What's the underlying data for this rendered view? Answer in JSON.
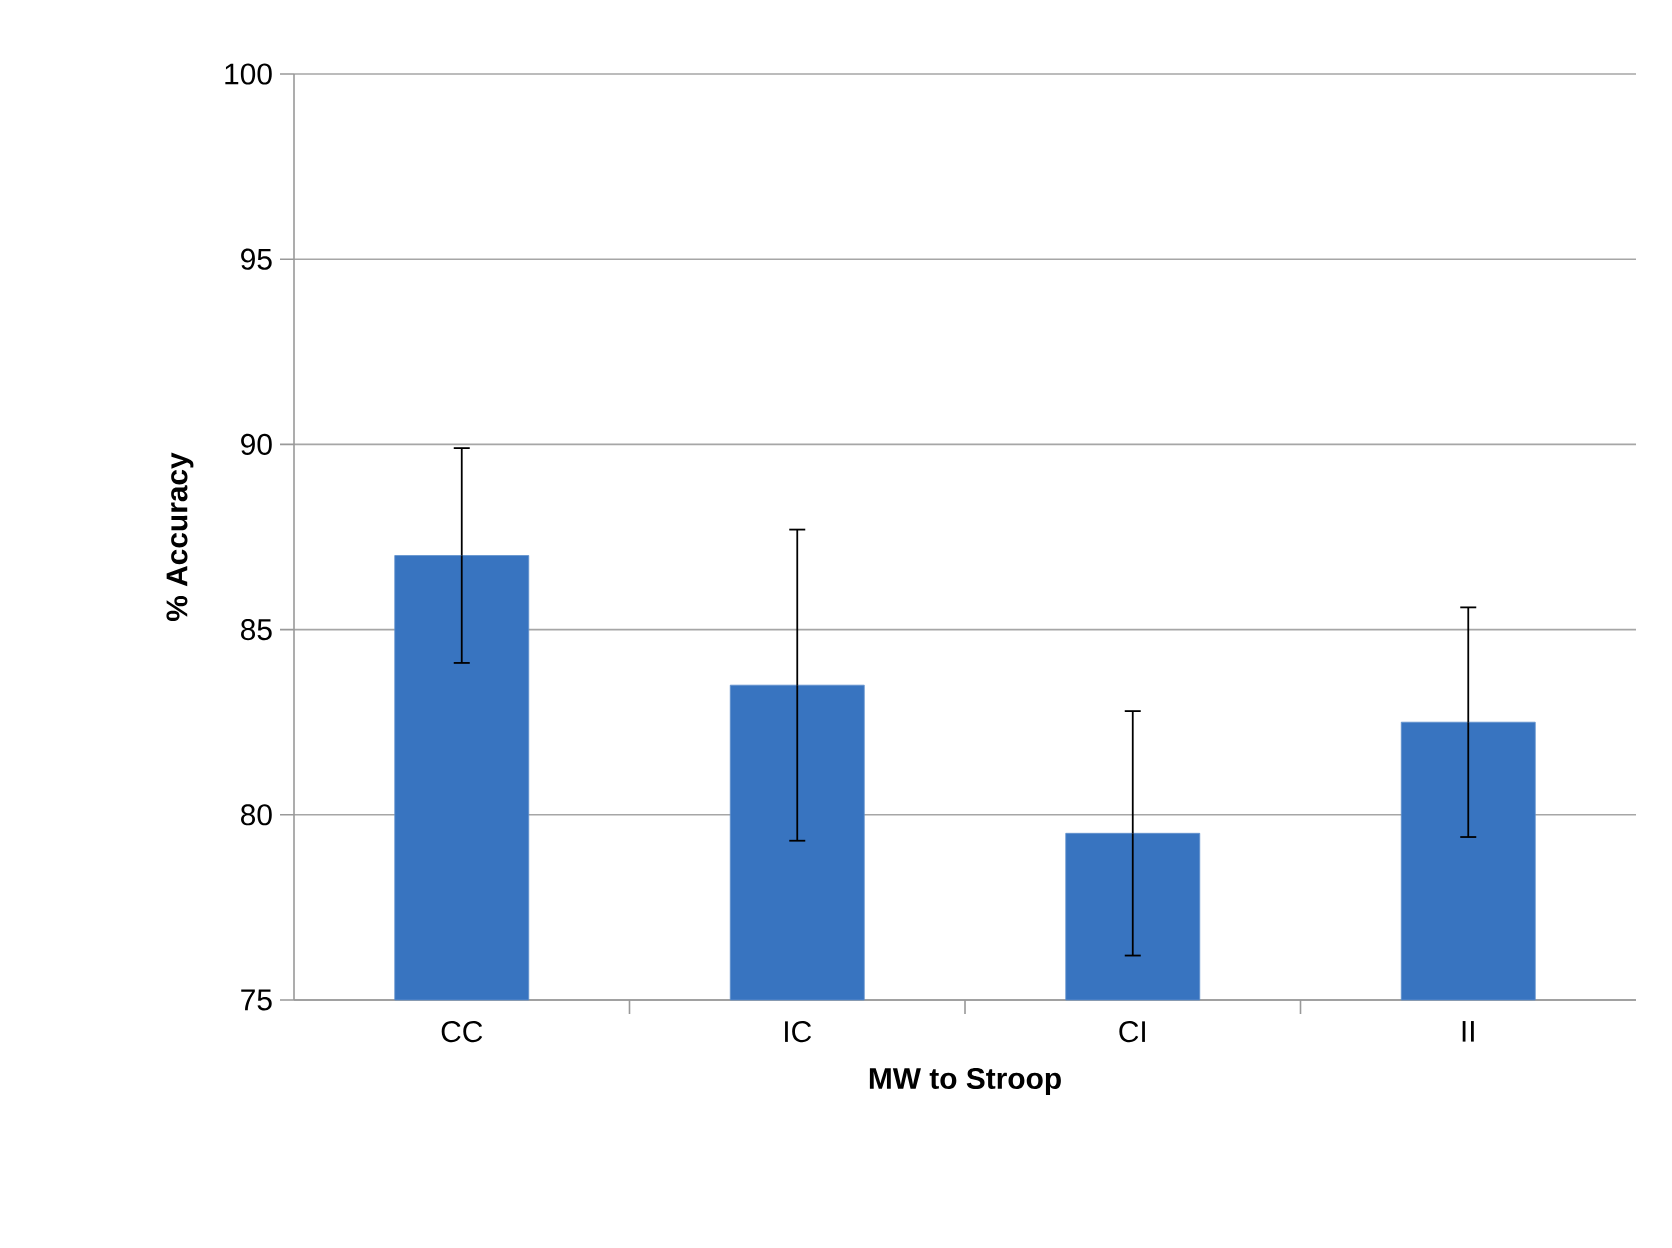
{
  "chart_data": {
    "type": "bar",
    "xlabel": "MW to Stroop",
    "ylabel": "% Accuracy",
    "categories": [
      "CC",
      "IC",
      "CI",
      "II"
    ],
    "values": [
      87.0,
      83.5,
      79.5,
      82.5
    ],
    "errors": [
      2.9,
      4.2,
      3.3,
      3.1
    ],
    "color": "#3874c0",
    "ylim": [
      75,
      100
    ],
    "yticks": [
      75,
      80,
      85,
      90,
      95,
      100
    ],
    "grid": "y"
  }
}
